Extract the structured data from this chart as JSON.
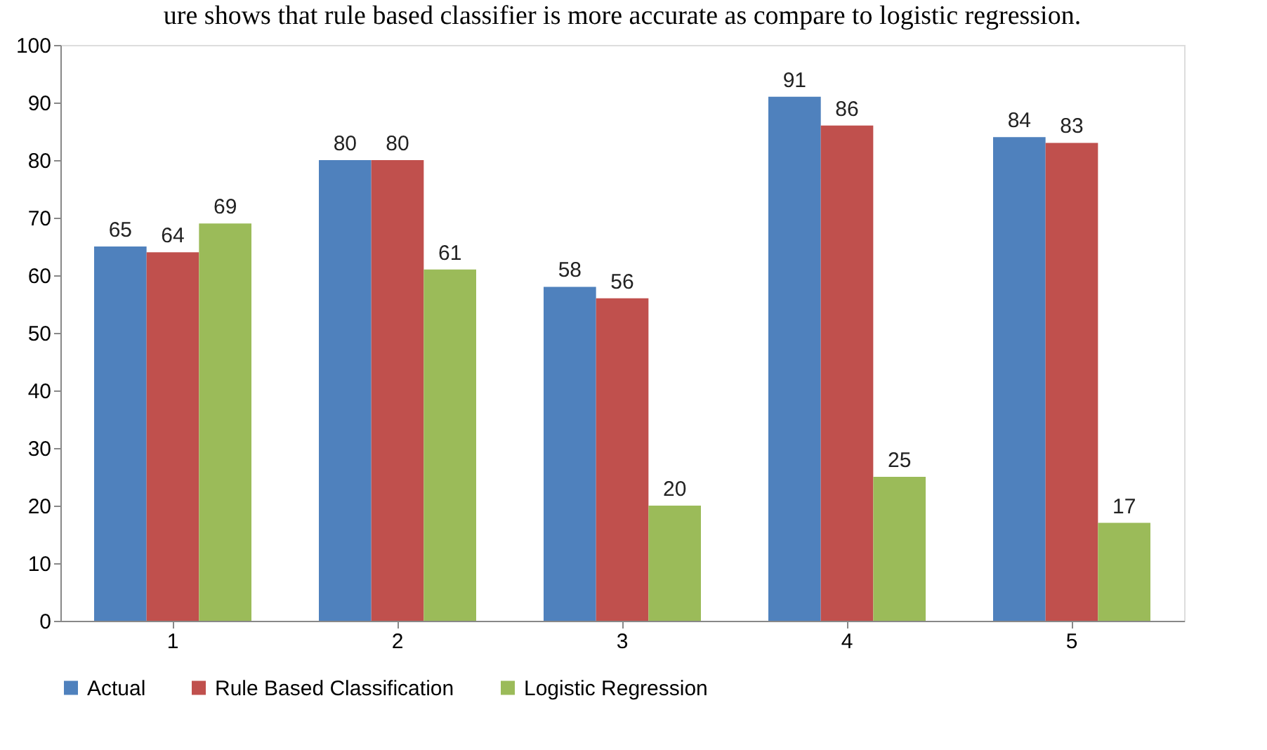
{
  "chart_data": {
    "type": "bar",
    "title": "ure shows that rule based classifier is more accurate as compare to logistic regression.",
    "categories": [
      "1",
      "2",
      "3",
      "4",
      "5"
    ],
    "series": [
      {
        "name": "Actual",
        "color": "#4f81bd",
        "values": [
          65,
          80,
          58,
          91,
          84
        ]
      },
      {
        "name": "Rule Based Classification",
        "color": "#c0504d",
        "values": [
          64,
          80,
          56,
          86,
          83
        ]
      },
      {
        "name": "Logistic Regression",
        "color": "#9bbb59",
        "values": [
          69,
          61,
          20,
          25,
          17
        ]
      }
    ],
    "ylim": [
      0,
      100
    ],
    "yticks": [
      0,
      10,
      20,
      30,
      40,
      50,
      60,
      70,
      80,
      90,
      100
    ],
    "data_labels": true,
    "legend": "bottom",
    "grid": false
  }
}
